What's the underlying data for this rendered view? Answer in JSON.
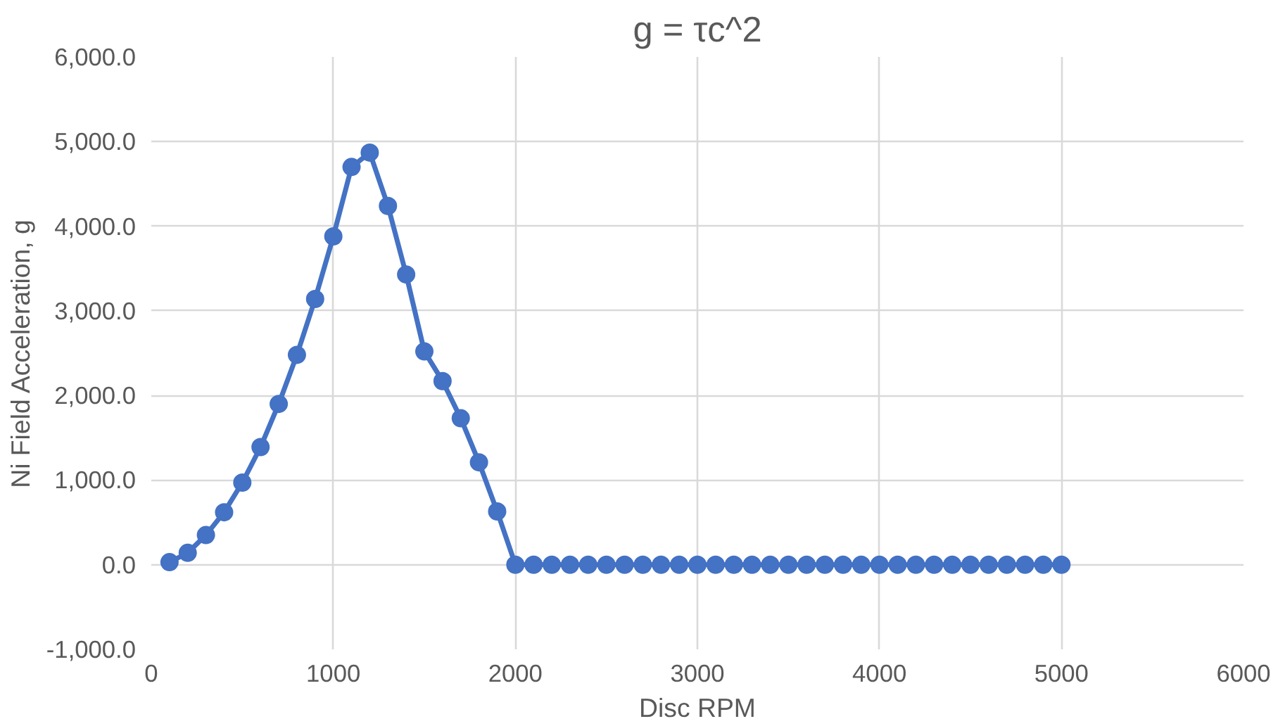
{
  "chart_data": {
    "type": "line",
    "title": "g = τc^2",
    "xlabel": "Disc RPM",
    "ylabel": "Ni Field Acceleration, g",
    "x": [
      100,
      200,
      300,
      400,
      500,
      600,
      700,
      800,
      900,
      1000,
      1100,
      1200,
      1300,
      1400,
      1500,
      1600,
      1700,
      1800,
      1900,
      2000,
      2100,
      2200,
      2300,
      2400,
      2500,
      2600,
      2700,
      2800,
      2900,
      3000,
      3100,
      3200,
      3300,
      3400,
      3500,
      3600,
      3700,
      3800,
      3900,
      4000,
      4100,
      4200,
      4300,
      4400,
      4500,
      4600,
      4700,
      4800,
      4900,
      5000
    ],
    "series": [
      {
        "color": "#4472c4",
        "values": [
          30,
          140,
          350,
          620,
          970,
          1390,
          1900,
          2480,
          3140,
          3880,
          4700,
          4870,
          4240,
          3430,
          2520,
          2170,
          1730,
          1210,
          630,
          0,
          0,
          0,
          0,
          0,
          0,
          0,
          0,
          0,
          0,
          0,
          0,
          0,
          0,
          0,
          0,
          0,
          0,
          0,
          0,
          0,
          0,
          0,
          0,
          0,
          0,
          0,
          0,
          0,
          0,
          0
        ]
      }
    ],
    "xlim": [
      0,
      6000
    ],
    "xticks": [
      0,
      1000,
      2000,
      3000,
      4000,
      5000,
      6000
    ],
    "ylim": [
      -1000,
      6000
    ],
    "yticks": [
      {
        "value": -1000,
        "label": "-1,000.0"
      },
      {
        "value": 0,
        "label": "0.0"
      },
      {
        "value": 1000,
        "label": "1,000.0"
      },
      {
        "value": 2000,
        "label": "2,000.0"
      },
      {
        "value": 3000,
        "label": "3,000.0"
      },
      {
        "value": 4000,
        "label": "4,000.0"
      },
      {
        "value": 5000,
        "label": "5,000.0"
      },
      {
        "value": 6000,
        "label": "6,000.0"
      }
    ],
    "grid": true,
    "marker": "circle",
    "line_style": "solid"
  }
}
